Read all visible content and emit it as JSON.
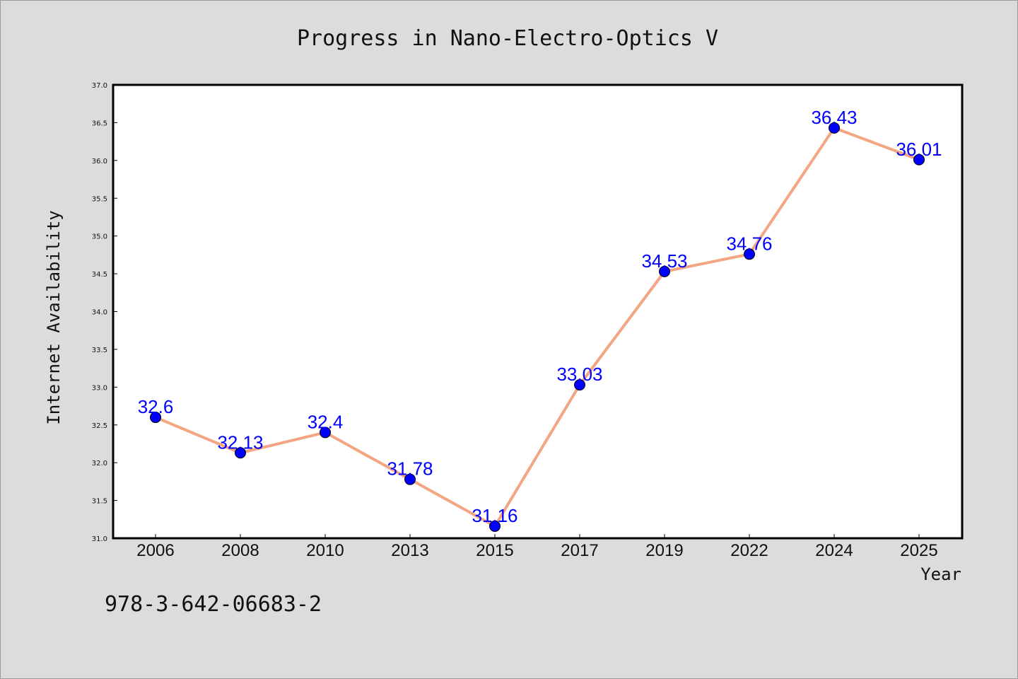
{
  "chart_data": {
    "type": "line",
    "title": "Progress in Nano-Electro-Optics V",
    "xlabel": "Year",
    "ylabel": "Internet Availability",
    "categories": [
      "2006",
      "2008",
      "2010",
      "2013",
      "2015",
      "2017",
      "2019",
      "2022",
      "2024",
      "2025"
    ],
    "series": [
      {
        "values": [
          32.6,
          32.13,
          32.4,
          31.78,
          31.16,
          33.03,
          34.53,
          34.76,
          36.43,
          36.01
        ]
      }
    ],
    "data_labels": [
      "32.6",
      "32.13",
      "32.4",
      "31.78",
      "31.16",
      "33.03",
      "34.53",
      "34.76",
      "36.43",
      "36.01"
    ],
    "ylim": [
      31.0,
      37.0
    ],
    "yticks": [
      31.0,
      31.5,
      32.0,
      32.5,
      33.0,
      33.5,
      34.0,
      34.5,
      35.0,
      35.5,
      36.0,
      36.5,
      37.0
    ],
    "ytick_labels": [
      "31.0",
      "31.5",
      "32.0",
      "32.5",
      "33.0",
      "33.5",
      "34.0",
      "34.5",
      "35.0",
      "35.5",
      "36.0",
      "36.5",
      "37.0"
    ],
    "grid": false,
    "line_color": "#f4a582",
    "marker_color": "#0000ff",
    "label_color": "#0000ff",
    "background_color": "#dcdcdc",
    "plot_background": "#ffffff"
  },
  "footnote": "978-3-642-06683-2"
}
